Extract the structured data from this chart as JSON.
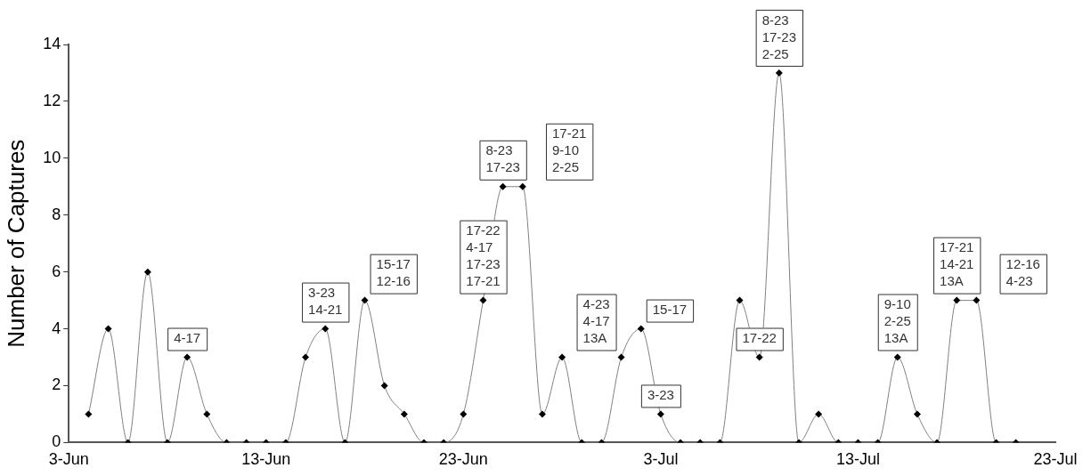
{
  "chart_data": {
    "type": "line",
    "ylabel": "Number of Captures",
    "x": [
      "--06-04",
      "--06-05",
      "--06-06",
      "--06-07",
      "--06-08",
      "--06-09",
      "--06-10",
      "--06-11",
      "--06-12",
      "--06-13",
      "--06-14",
      "--06-15",
      "--06-16",
      "--06-17",
      "--06-18",
      "--06-19",
      "--06-20",
      "--06-21",
      "--06-22",
      "--06-23",
      "--06-24",
      "--06-25",
      "--06-26",
      "--06-27",
      "--06-28",
      "--06-29",
      "--06-30",
      "--07-01",
      "--07-02",
      "--07-03",
      "--07-04",
      "--07-05",
      "--07-06",
      "--07-07",
      "--07-08",
      "--07-09",
      "--07-10",
      "--07-11",
      "--07-12",
      "--07-13",
      "--07-14",
      "--07-15",
      "--07-16",
      "--07-17",
      "--07-18",
      "--07-19",
      "--07-20",
      "--07-21"
    ],
    "series": [
      {
        "color": "#808080",
        "values": [
          1,
          4,
          0,
          6,
          0,
          3,
          1,
          0,
          0,
          0,
          0,
          3,
          4,
          0,
          5,
          2,
          1,
          0,
          0,
          1,
          5,
          9,
          9,
          1,
          3,
          0,
          0,
          3,
          4,
          1,
          0,
          0,
          0,
          5,
          3,
          13,
          0,
          1,
          0,
          0,
          0,
          3,
          1,
          0,
          5,
          5,
          0,
          0
        ]
      }
    ],
    "xlim": [
      "--06-03",
      "--07-23"
    ],
    "xticks": [
      {
        "value": "--06-03",
        "label": "3-Jun"
      },
      {
        "value": "--06-13",
        "label": "13-Jun"
      },
      {
        "value": "--06-23",
        "label": "23-Jun"
      },
      {
        "value": "--07-03",
        "label": "3-Jul"
      },
      {
        "value": "--07-13",
        "label": "13-Jul"
      },
      {
        "value": "--07-23",
        "label": "23-Jul"
      }
    ],
    "ylim": [
      0,
      14
    ],
    "yticks": [
      0,
      2,
      4,
      6,
      8,
      10,
      12,
      14
    ],
    "grid": false,
    "legend": false,
    "marker": "diamond",
    "line_style": "solid",
    "annotations": [
      {
        "text": "4-17",
        "x": "--06-09",
        "y": 3
      },
      {
        "text": "3-23\n14-21",
        "x": "--06-16",
        "y": 4
      },
      {
        "text": "15-17\n12-16",
        "x": "--06-18",
        "y": 5
      },
      {
        "text": "17-22\n4-17\n17-23\n17-21",
        "x": "--06-24",
        "y": 5
      },
      {
        "text": "8-23\n17-23",
        "x": "--06-25",
        "y": 9
      },
      {
        "text": "17-21\n9-10\n2-25",
        "x": "--06-26",
        "y": 9
      },
      {
        "text": "4-23\n4-17\n13A",
        "x": "--07-01",
        "y": 3
      },
      {
        "text": "15-17",
        "x": "--07-02",
        "y": 4
      },
      {
        "text": "3-23",
        "x": "--07-03",
        "y": 1
      },
      {
        "text": "17-22",
        "x": "--07-08",
        "y": 3
      },
      {
        "text": "8-23\n17-23\n2-25",
        "x": "--07-09",
        "y": 13
      },
      {
        "text": "9-10\n2-25\n13A",
        "x": "--07-15",
        "y": 3
      },
      {
        "text": "17-21\n14-21\n13A",
        "x": "--07-18",
        "y": 5
      },
      {
        "text": "12-16\n4-23",
        "x": "--07-19",
        "y": 5
      }
    ]
  }
}
